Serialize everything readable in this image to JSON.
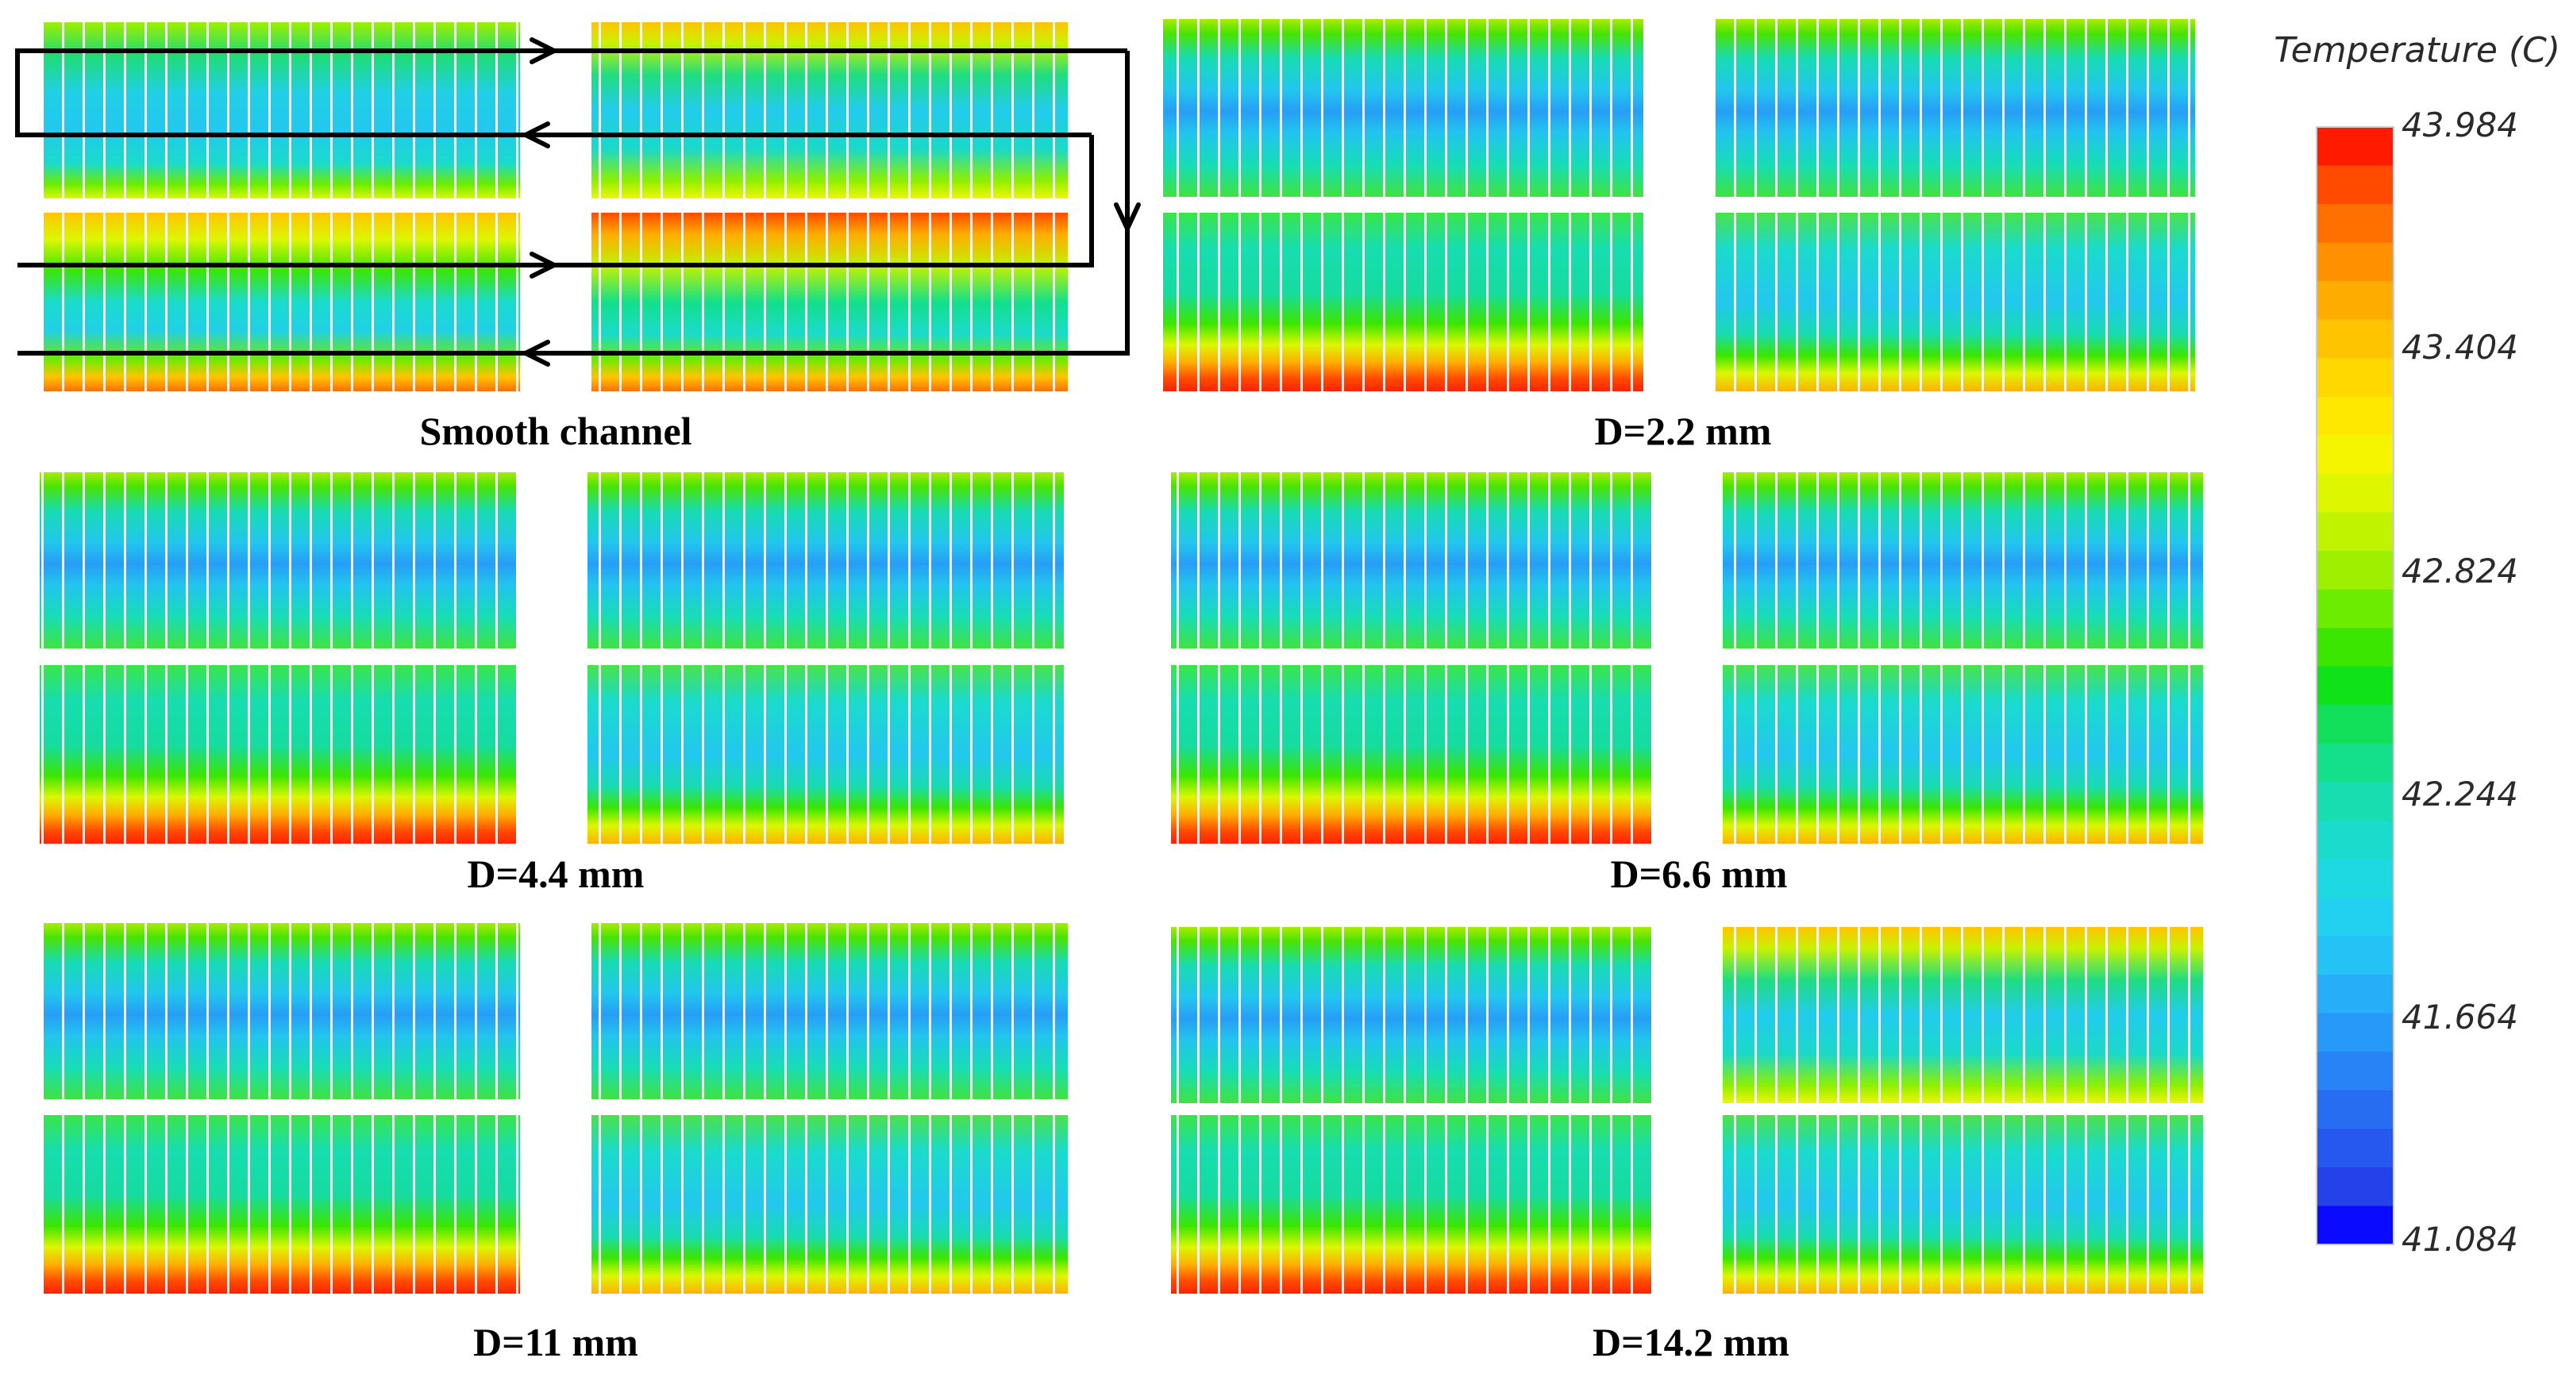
{
  "legend": {
    "title": "Temperature (C)",
    "ticks": [
      "43.984",
      "43.404",
      "42.824",
      "42.244",
      "41.664",
      "41.084"
    ],
    "colors": [
      "#ff1a00",
      "#ff4a00",
      "#ff7000",
      "#ff9000",
      "#ffac00",
      "#ffc400",
      "#ffd800",
      "#ffe800",
      "#f6f500",
      "#dcf700",
      "#bff300",
      "#9ef000",
      "#6cec00",
      "#3be600",
      "#10e21a",
      "#12e05a",
      "#14df8a",
      "#17ddb0",
      "#1adbcc",
      "#1ed8e2",
      "#22d0f0",
      "#25c2f6",
      "#26aff8",
      "#2799f8",
      "#2783f6",
      "#276df2",
      "#2657ee",
      "#2542ea",
      "#0a0aff"
    ]
  },
  "panels": [
    {
      "caption": "Smooth channel"
    },
    {
      "caption": "D=2.2 mm"
    },
    {
      "caption": "D=4.4 mm"
    },
    {
      "caption": "D=6.6 mm"
    },
    {
      "caption": "D=11 mm"
    },
    {
      "caption": "D=14.2 mm"
    }
  ]
}
